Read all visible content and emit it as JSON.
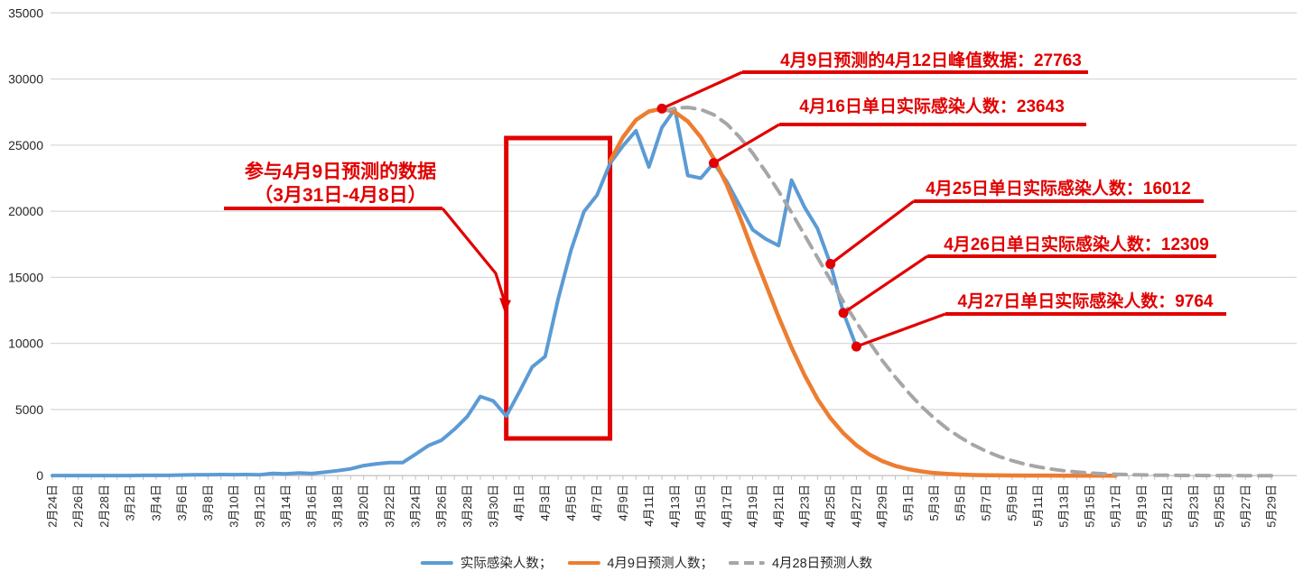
{
  "chart_data": {
    "type": "line",
    "title": "",
    "xlabel": "",
    "ylabel": "",
    "ylim": [
      0,
      35000
    ],
    "y_ticks": [
      0,
      5000,
      10000,
      15000,
      20000,
      25000,
      30000,
      35000
    ],
    "grid": "horizontal",
    "legend_position": "bottom",
    "x_total_days": 95,
    "x_tick_labels": [
      "2月24日",
      "2月26日",
      "2月28日",
      "3月2日",
      "3月4日",
      "3月6日",
      "3月8日",
      "3月10日",
      "3月12日",
      "3月14日",
      "3月16日",
      "3月18日",
      "3月20日",
      "3月22日",
      "3月24日",
      "3月26日",
      "3月28日",
      "3月30日",
      "4月1日",
      "4月3日",
      "4月5日",
      "4月7日",
      "4月9日",
      "4月11日",
      "4月13日",
      "4月15日",
      "4月17日",
      "4月19日",
      "4月21日",
      "4月23日",
      "4月25日",
      "4月27日",
      "4月29日",
      "5月1日",
      "5月3日",
      "5月5日",
      "5月7日",
      "5月9日",
      "5月11日",
      "5月13日",
      "5月15日",
      "5月17日",
      "5月19日",
      "5月21日",
      "5月23日",
      "5月25日",
      "5月27日",
      "5月29日"
    ],
    "series": [
      {
        "name": "实际感染人数",
        "color": "#5B9BD5",
        "style": "solid",
        "start_day": 0,
        "values": [
          4,
          5,
          10,
          10,
          9,
          6,
          8,
          19,
          20,
          19,
          48,
          64,
          65,
          82,
          75,
          83,
          65,
          169,
          139,
          202,
          158,
          260,
          374,
          509,
          758,
          896,
          981,
          983,
          1609,
          2269,
          2676,
          3500,
          4477,
          5982,
          5653,
          4502,
          6311,
          8226,
          9006,
          13354,
          17077,
          19982,
          21222,
          23624,
          24943,
          26087,
          23342,
          26330,
          27719,
          22700,
          22500,
          23643,
          22248,
          20416,
          18600,
          17900,
          17400,
          22350,
          20300,
          18700,
          16012,
          12309,
          9764
        ]
      },
      {
        "name": "4月9日预测人数",
        "color": "#ED7D31",
        "style": "solid",
        "start_day": 43,
        "values": [
          23800,
          25600,
          26900,
          27550,
          27763,
          27500,
          26800,
          25600,
          24000,
          22000,
          19600,
          17000,
          14500,
          12000,
          9700,
          7600,
          5800,
          4350,
          3200,
          2300,
          1600,
          1100,
          740,
          490,
          320,
          200,
          130,
          80,
          50,
          32,
          20,
          13,
          8,
          5,
          4,
          3,
          2,
          2,
          1,
          1
        ]
      },
      {
        "name": "4月28日预测人数",
        "color": "#A6A6A6",
        "style": "dashed",
        "start_day": 47,
        "values": [
          27550,
          27800,
          27850,
          27700,
          27300,
          26600,
          25600,
          24400,
          23000,
          21500,
          19900,
          18200,
          16500,
          14800,
          13150,
          11600,
          10100,
          8700,
          7450,
          6300,
          5250,
          4350,
          3550,
          2900,
          2330,
          1850,
          1450,
          1130,
          870,
          660,
          500,
          370,
          270,
          200,
          145,
          105,
          75,
          52,
          36,
          25,
          17,
          12,
          8,
          6,
          4,
          3,
          2,
          2
        ]
      }
    ]
  },
  "legend": {
    "items": [
      {
        "label": "实际感染人数；"
      },
      {
        "label": "4月9日预测人数；"
      },
      {
        "label": "4月28日预测人数"
      }
    ]
  },
  "annotations": {
    "peak": {
      "text": "4月9日预测的4月12日峰值数据：27763",
      "anchor_day": 47,
      "anchor_value": 27763
    },
    "apr16": {
      "text": "4月16日单日实际感染人数：23643",
      "anchor_day": 51,
      "anchor_value": 23643
    },
    "apr25": {
      "text": "4月25日单日实际感染人数：16012",
      "anchor_day": 60,
      "anchor_value": 16012
    },
    "apr26": {
      "text": "4月26日单日实际感染人数：12309",
      "anchor_day": 61,
      "anchor_value": 12309
    },
    "apr27": {
      "text": "4月27日单日实际感染人数：9764",
      "anchor_day": 62,
      "anchor_value": 9764
    },
    "window": {
      "line1": "参与4月9日预测的数据",
      "line2": "（3月31日-4月8日）",
      "box_start_day": 35,
      "box_end_day": 43
    }
  },
  "colors": {
    "actual": "#5B9BD5",
    "forecast_apr9": "#ED7D31",
    "forecast_apr28": "#A6A6A6",
    "annotation_red": "#E10000",
    "gridline": "#D9D9D9",
    "axis_text": "#262626"
  }
}
